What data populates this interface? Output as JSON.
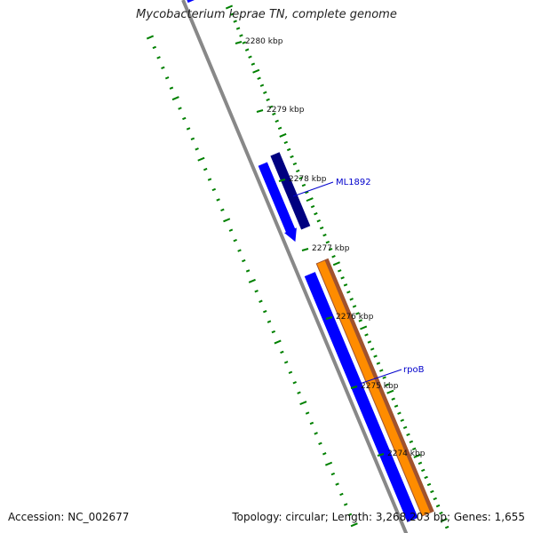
{
  "title": "Mycobacterium leprae TN, complete genome",
  "accession": "Accession: NC_002677",
  "summary": "Topology: circular; Length: 3,268,203 bp; Genes: 1,655",
  "ticks": [
    "2280 kbp",
    "2279 kbp",
    "2278 kbp",
    "2277 kbp",
    "2276 kbp",
    "2275 kbp",
    "2274 kbp"
  ],
  "genes": [
    {
      "name": "ML1892",
      "strand": "reverse"
    },
    {
      "name": "rpoB",
      "strand": "forward"
    }
  ],
  "colors": {
    "backbone": "#888888",
    "cds_reverse": "#0000ff",
    "cds_dark": "#000080",
    "gene": "#ff8c00",
    "gene_edge": "#a0522d",
    "top_feature": "#f08080",
    "tick": "#008000",
    "label_line": "#0000cc"
  }
}
